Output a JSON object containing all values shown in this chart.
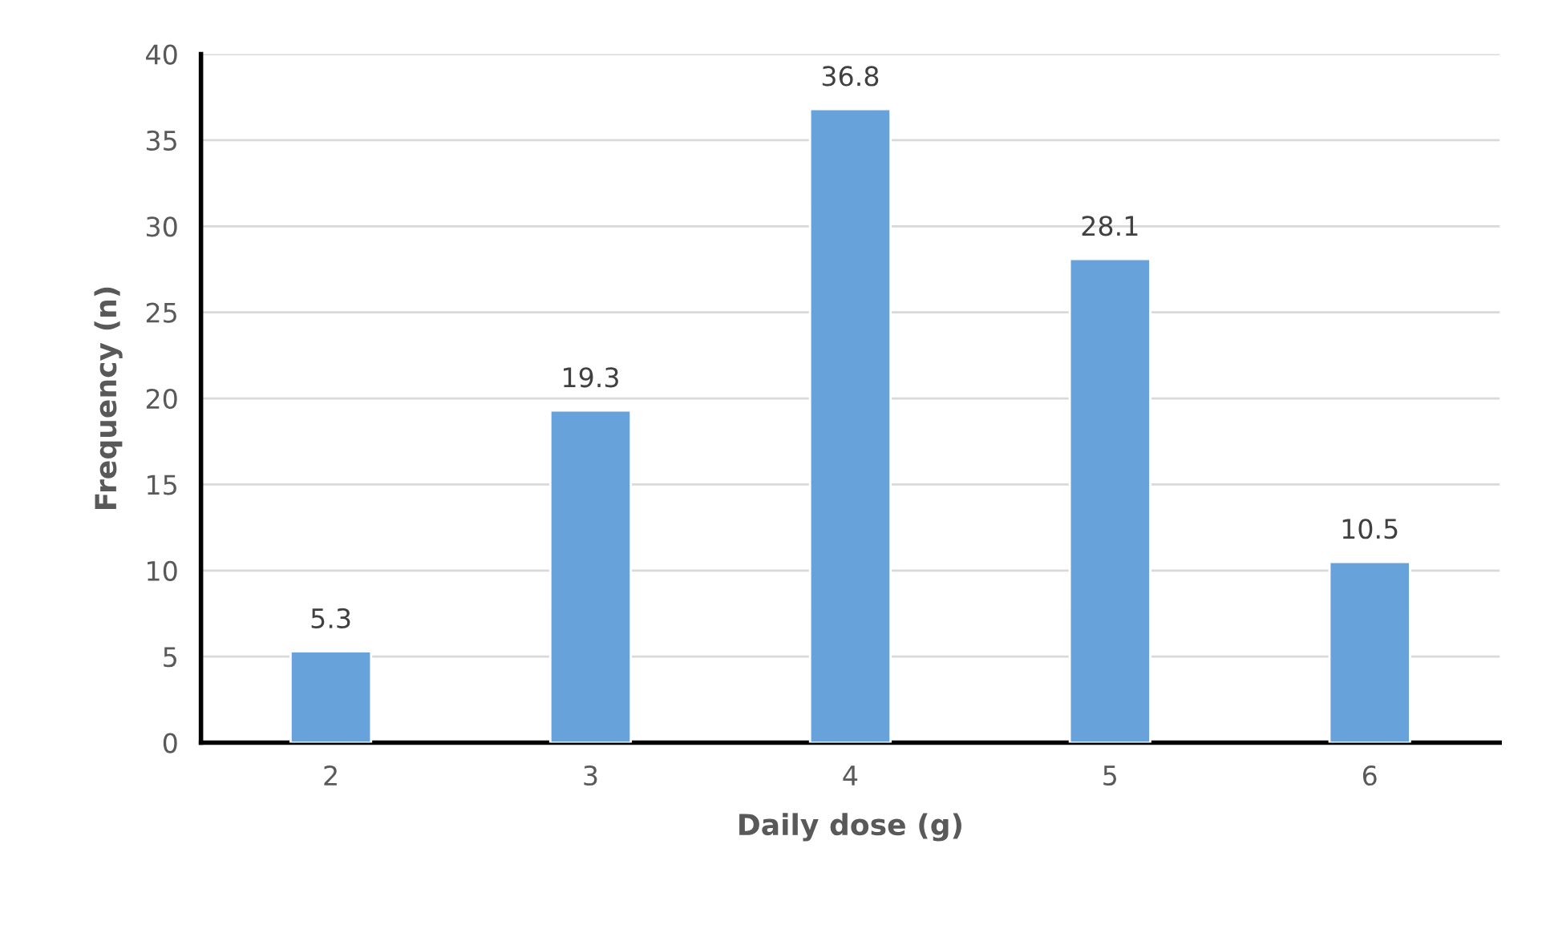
{
  "chart_data": {
    "type": "bar",
    "xlabel": "Daily dose (g)",
    "ylabel": "Frequency (n)",
    "categories": [
      "2",
      "3",
      "4",
      "5",
      "6"
    ],
    "values": [
      5.3,
      19.3,
      36.8,
      28.1,
      10.5
    ],
    "color": "#67a3da",
    "ylim": [
      0,
      40
    ],
    "yticks": [
      0,
      5,
      10,
      15,
      20,
      25,
      30,
      35,
      40
    ],
    "grid": "y",
    "data_labels": true
  }
}
